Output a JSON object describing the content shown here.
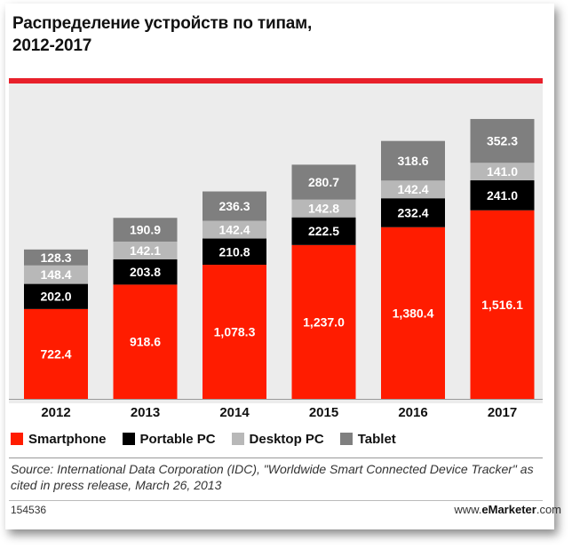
{
  "header": {
    "title_line1": "Распределение устройств по типам,",
    "title_line2": "2012-2017"
  },
  "chart_data": {
    "type": "bar",
    "stacked": true,
    "categories": [
      "2012",
      "2013",
      "2014",
      "2015",
      "2016",
      "2017"
    ],
    "series": [
      {
        "name": "Smartphone",
        "color": "#ff1c00",
        "values": [
          722.4,
          918.6,
          1078.3,
          1237.0,
          1380.4,
          1516.1
        ],
        "labels": [
          "722.4",
          "918.6",
          "1,078.3",
          "1,237.0",
          "1,380.4",
          "1,516.1"
        ]
      },
      {
        "name": "Portable PC",
        "color": "#000000",
        "values": [
          202.0,
          203.8,
          210.8,
          222.5,
          232.4,
          241.0
        ],
        "labels": [
          "202.0",
          "203.8",
          "210.8",
          "222.5",
          "232.4",
          "241.0"
        ]
      },
      {
        "name": "Desktop PC",
        "color": "#b8b8b8",
        "values": [
          148.4,
          142.1,
          142.4,
          142.8,
          142.4,
          141.0
        ],
        "labels": [
          "148.4",
          "142.1",
          "142.4",
          "142.8",
          "142.4",
          "141.0"
        ]
      },
      {
        "name": "Tablet",
        "color": "#7f7f7f",
        "values": [
          128.3,
          190.9,
          236.3,
          280.7,
          318.6,
          352.3
        ],
        "labels": [
          "128.3",
          "190.9",
          "236.3",
          "280.7",
          "318.6",
          "352.3"
        ]
      }
    ],
    "legend_position": "bottom",
    "grid": false
  },
  "footer": {
    "source": "Source: International Data Corporation (IDC), \"Worldwide Smart Connected Device Tracker\" as cited in press release, March 26, 2013",
    "chart_id": "154536",
    "brand_prefix": "www.",
    "brand_bold": "eMarketer",
    "brand_suffix": ".com"
  }
}
